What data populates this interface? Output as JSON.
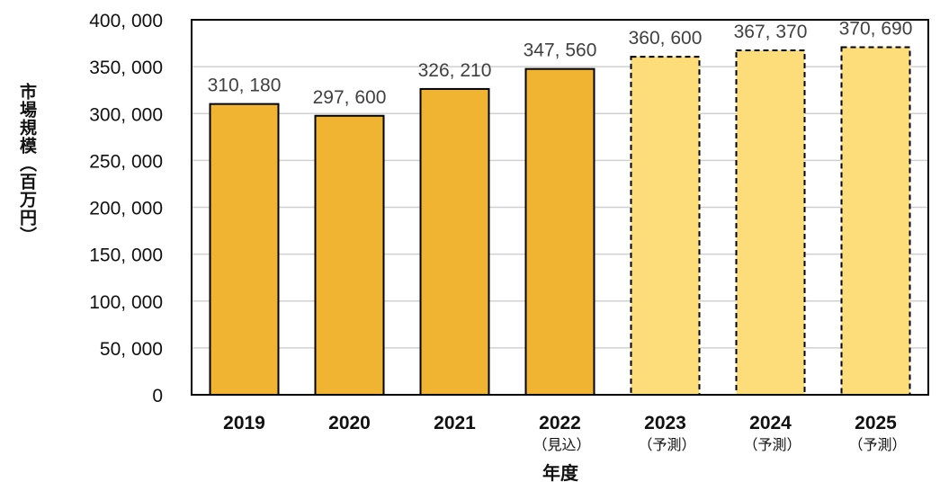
{
  "chart_data": {
    "type": "bar",
    "title": "",
    "xlabel": "年度",
    "ylabel": "市場規模（百万円）",
    "ylim": [
      0,
      400000
    ],
    "yticks": [
      0,
      50000,
      100000,
      150000,
      200000,
      250000,
      300000,
      350000,
      400000
    ],
    "ytick_labels": [
      "0",
      "50, 000",
      "100, 000",
      "150, 000",
      "200, 000",
      "250, 000",
      "300, 000",
      "350, 000",
      "400, 000"
    ],
    "grid": true,
    "legend": null,
    "categories": [
      "2019",
      "2020",
      "2021",
      "2022",
      "2023",
      "2024",
      "2025"
    ],
    "category_notes": [
      "",
      "",
      "",
      "（見込）",
      "（予測）",
      "（予測）",
      "（予測）"
    ],
    "values": [
      310180,
      297600,
      326210,
      347560,
      360600,
      367370,
      370690
    ],
    "value_labels": [
      "310, 180",
      "297, 600",
      "326, 210",
      "347, 560",
      "360, 600",
      "367, 370",
      "370, 690"
    ],
    "bar_styles": [
      "actual",
      "actual",
      "actual",
      "estimate",
      "forecast",
      "forecast",
      "forecast"
    ]
  },
  "colors": {
    "actual_fill": "#F0B432",
    "forecast_fill": "#FDDC7A",
    "bar_border": "#000000",
    "grid": "#D0D0D0",
    "axis": "#000000",
    "label_text": "#404040",
    "tick_text": "#111111"
  },
  "labels": {
    "ytitle": "市場規模（百万円）",
    "xtitle": "年度"
  }
}
